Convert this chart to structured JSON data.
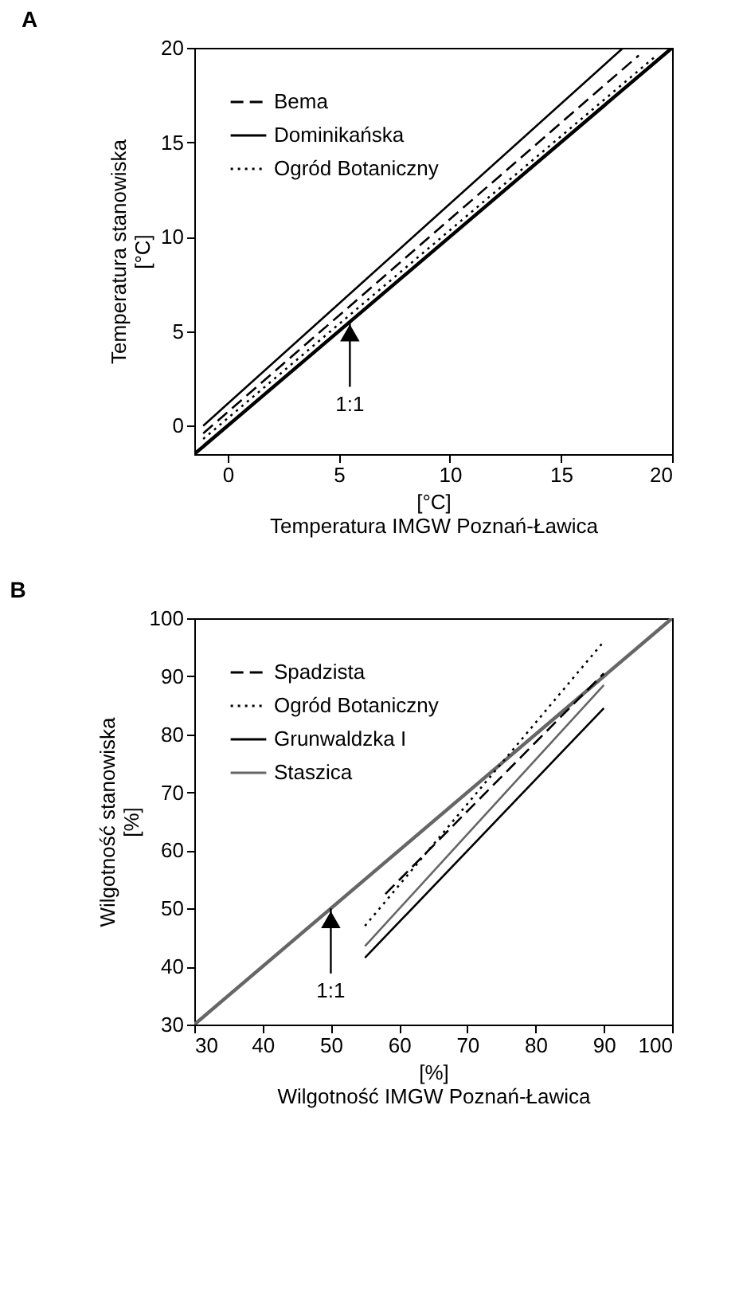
{
  "chart_data": [
    {
      "type": "line",
      "title": "A",
      "xlabel": "[°C]\nTemperatura IMGW Poznań-Ławica",
      "ylabel": "Temperatura stanowiska\n[°C]",
      "xlim": [
        -1.5,
        20
      ],
      "ylim": [
        -1.5,
        20
      ],
      "xticks": [
        0,
        5,
        10,
        15,
        20
      ],
      "yticks": [
        0,
        5,
        10,
        15,
        20
      ],
      "grid": false,
      "legend": "top left",
      "series": [
        {
          "name": "Bema",
          "color": "#000000",
          "line_style": "dashed",
          "x": [
            -1.1,
            18.5
          ],
          "values": [
            -0.4,
            19.6
          ]
        },
        {
          "name": "Dominikańska",
          "color": "#000000",
          "line_style": "solid",
          "x": [
            -1.1,
            17.8
          ],
          "values": [
            0,
            20
          ]
        },
        {
          "name": "Ogród Botaniczny",
          "color": "#000000",
          "line_style": "dotted",
          "x": [
            -1.1,
            19.2
          ],
          "values": [
            -0.7,
            19.5
          ]
        },
        {
          "color": "#000000",
          "line_style": "solid",
          "x": [
            -1.5,
            20
          ],
          "values": [
            -1.5,
            20
          ]
        }
      ],
      "annotations": [
        {
          "text": "1:1",
          "x": 5.5,
          "y": 5.5
        }
      ]
    },
    {
      "type": "line",
      "title": "B",
      "xlabel": "[%]\nWilgotność IMGW Poznań-Ławica",
      "ylabel": "Wilgotność stanowiska\n[%]",
      "xlim": [
        30,
        100
      ],
      "ylim": [
        30,
        100
      ],
      "xticks": [
        30,
        40,
        50,
        60,
        70,
        80,
        90,
        100
      ],
      "yticks": [
        30,
        40,
        50,
        60,
        70,
        80,
        90,
        100
      ],
      "grid": false,
      "legend": "top left",
      "series": [
        {
          "name": "Spadzista",
          "color": "#000000",
          "line_style": "dashed",
          "x": [
            58,
            90
          ],
          "values": [
            52.5,
            90.5
          ]
        },
        {
          "name": "Ogród Botaniczny",
          "color": "#000000",
          "line_style": "dotted",
          "x": [
            55,
            90
          ],
          "values": [
            47,
            96
          ]
        },
        {
          "name": "Grunwaldzka I",
          "color": "#000000",
          "line_style": "solid",
          "x": [
            55,
            90
          ],
          "values": [
            41.5,
            84.5
          ]
        },
        {
          "name": "Staszica",
          "color": "#666666",
          "line_style": "solid",
          "x": [
            55,
            90
          ],
          "values": [
            43.5,
            88.5
          ]
        },
        {
          "color": "#666666",
          "line_style": "solid",
          "x": [
            30,
            100
          ],
          "values": [
            30,
            100
          ]
        }
      ],
      "annotations": [
        {
          "text": "1:1",
          "x": 50,
          "y": 50
        }
      ]
    }
  ]
}
